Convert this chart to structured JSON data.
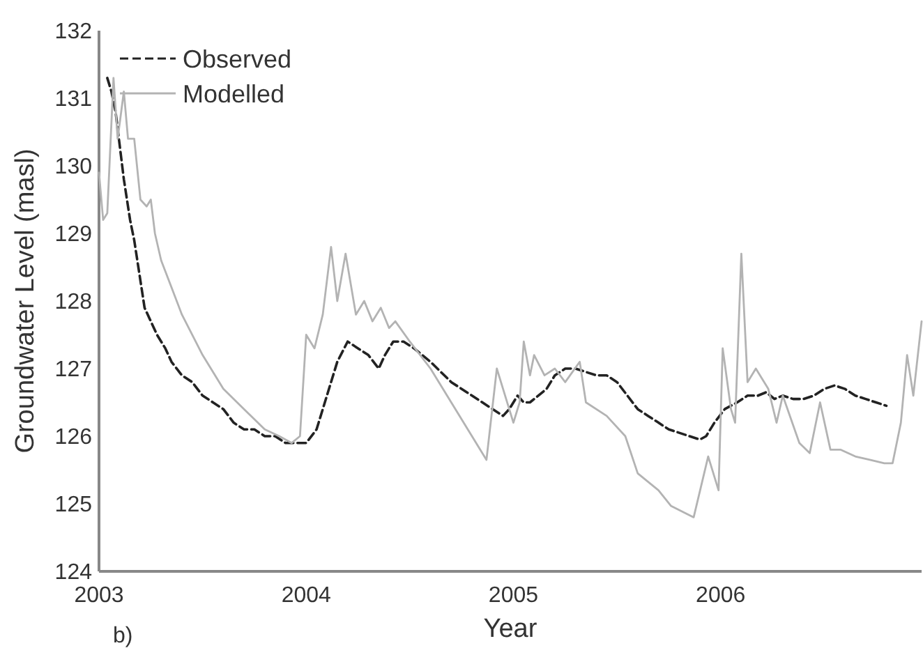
{
  "chart_data": {
    "type": "line",
    "xlabel": "Year",
    "ylabel": "Groundwater Level (masl)",
    "annotations": [
      "b)"
    ],
    "xlim": [
      2003,
      2006.97
    ],
    "xticks": [
      2003,
      2004,
      2005,
      2006
    ],
    "ylim": [
      124,
      132
    ],
    "yticks": [
      124,
      125,
      126,
      127,
      128,
      129,
      130,
      131,
      132
    ],
    "grid": false,
    "legend": "top left",
    "series": [
      {
        "name": "Observed",
        "color": "#222222",
        "line_style": "dashed",
        "x": [
          2003.04,
          2003.06,
          2003.08,
          2003.1,
          2003.12,
          2003.15,
          2003.17,
          2003.2,
          2003.22,
          2003.25,
          2003.28,
          2003.32,
          2003.35,
          2003.4,
          2003.45,
          2003.5,
          2003.55,
          2003.6,
          2003.65,
          2003.7,
          2003.75,
          2003.8,
          2003.85,
          2003.9,
          2003.95,
          2004.0,
          2004.05,
          2004.08,
          2004.12,
          2004.15,
          2004.2,
          2004.25,
          2004.3,
          2004.35,
          2004.38,
          2004.42,
          2004.47,
          2004.52,
          2004.6,
          2004.7,
          2004.8,
          2004.9,
          2004.95,
          2004.98,
          2005.02,
          2005.05,
          2005.08,
          2005.12,
          2005.16,
          2005.2,
          2005.25,
          2005.3,
          2005.35,
          2005.4,
          2005.45,
          2005.5,
          2005.55,
          2005.6,
          2005.65,
          2005.7,
          2005.75,
          2005.8,
          2005.85,
          2005.9,
          2005.93,
          2005.97,
          2006.02,
          2006.08,
          2006.13,
          2006.18,
          2006.22,
          2006.26,
          2006.3,
          2006.35,
          2006.4,
          2006.45,
          2006.5,
          2006.55,
          2006.6,
          2006.65,
          2006.7,
          2006.75,
          2006.8
        ],
        "values": [
          131.3,
          131.1,
          130.8,
          130.3,
          129.8,
          129.2,
          128.9,
          128.3,
          127.9,
          127.7,
          127.5,
          127.3,
          127.1,
          126.9,
          126.8,
          126.6,
          126.5,
          126.4,
          126.2,
          126.1,
          126.1,
          126.0,
          126.0,
          125.9,
          125.9,
          125.9,
          126.1,
          126.4,
          126.8,
          127.1,
          127.4,
          127.3,
          127.2,
          127.0,
          127.2,
          127.4,
          127.4,
          127.3,
          127.1,
          126.8,
          126.6,
          126.4,
          126.3,
          126.4,
          126.6,
          126.5,
          126.5,
          126.6,
          126.7,
          126.9,
          127.0,
          127.0,
          126.95,
          126.9,
          126.9,
          126.8,
          126.6,
          126.4,
          126.3,
          126.2,
          126.1,
          126.05,
          126.0,
          125.95,
          126.0,
          126.2,
          126.4,
          126.5,
          126.6,
          126.6,
          126.65,
          126.55,
          126.6,
          126.55,
          126.55,
          126.6,
          126.7,
          126.75,
          126.7,
          126.6,
          126.55,
          126.5,
          126.45
        ]
      },
      {
        "name": "Modelled",
        "color": "#b3b3b3",
        "line_style": "solid",
        "x": [
          2003.0,
          2003.02,
          2003.04,
          2003.07,
          2003.09,
          2003.12,
          2003.14,
          2003.17,
          2003.2,
          2003.23,
          2003.25,
          2003.27,
          2003.3,
          2003.35,
          2003.4,
          2003.5,
          2003.6,
          2003.7,
          2003.8,
          2003.87,
          2003.93,
          2003.97,
          2004.0,
          2004.04,
          2004.08,
          2004.12,
          2004.15,
          2004.19,
          2004.24,
          2004.28,
          2004.32,
          2004.36,
          2004.4,
          2004.43,
          2004.5,
          2004.6,
          2004.7,
          2004.8,
          2004.87,
          2004.92,
          2004.95,
          2005.0,
          2005.03,
          2005.05,
          2005.08,
          2005.1,
          2005.15,
          2005.2,
          2005.25,
          2005.32,
          2005.35,
          2005.45,
          2005.54,
          2005.6,
          2005.7,
          2005.76,
          2005.87,
          2005.94,
          2005.99,
          2006.01,
          2006.05,
          2006.07,
          2006.1,
          2006.13,
          2006.17,
          2006.23,
          2006.27,
          2006.3,
          2006.38,
          2006.43,
          2006.48,
          2006.53,
          2006.58,
          2006.65,
          2006.72,
          2006.79,
          2006.83,
          2006.87,
          2006.9,
          2006.93,
          2006.97
        ],
        "values": [
          129.9,
          129.2,
          129.3,
          131.3,
          130.4,
          131.1,
          130.4,
          130.4,
          129.5,
          129.4,
          129.5,
          129.0,
          128.6,
          128.2,
          127.8,
          127.2,
          126.7,
          126.4,
          126.1,
          126.0,
          125.9,
          126.0,
          127.5,
          127.3,
          127.8,
          128.8,
          128.0,
          128.7,
          127.8,
          128.0,
          127.7,
          127.9,
          127.6,
          127.7,
          127.4,
          127.0,
          126.5,
          126.0,
          125.65,
          127.0,
          126.7,
          126.2,
          126.5,
          127.4,
          126.9,
          127.2,
          126.9,
          127.0,
          126.8,
          127.1,
          126.5,
          126.3,
          126.0,
          125.45,
          125.2,
          124.97,
          124.8,
          125.7,
          125.2,
          127.3,
          126.4,
          126.2,
          128.7,
          126.8,
          127.0,
          126.7,
          126.2,
          126.6,
          125.9,
          125.75,
          126.5,
          125.8,
          125.8,
          125.7,
          125.65,
          125.6,
          125.6,
          126.2,
          127.2,
          126.6,
          127.7
        ]
      }
    ]
  }
}
